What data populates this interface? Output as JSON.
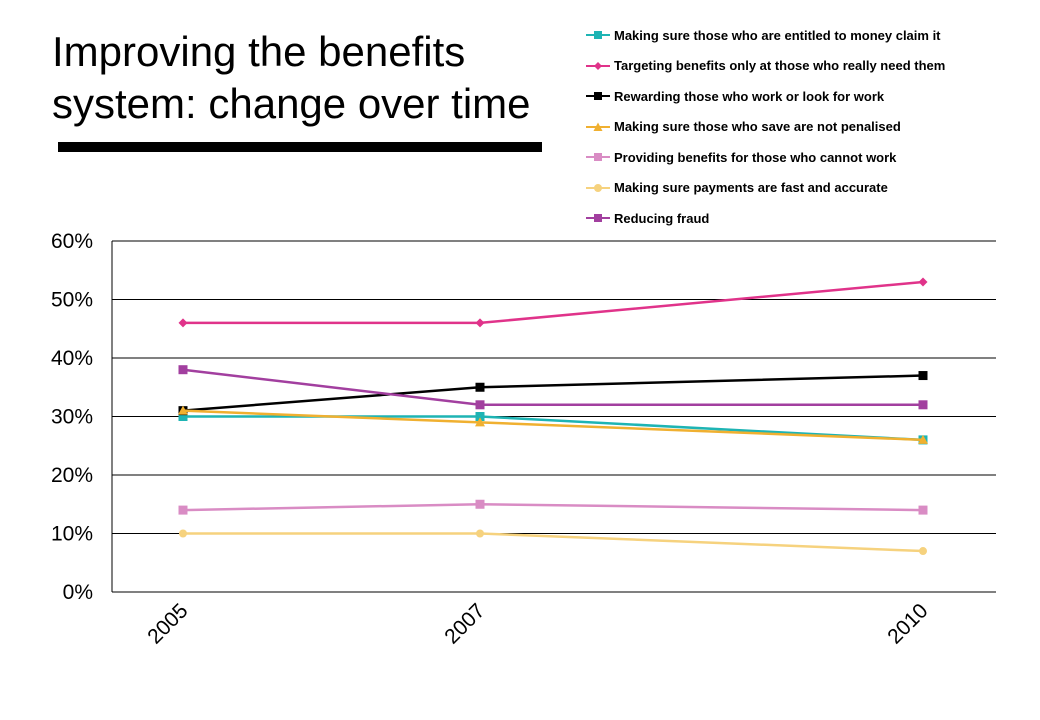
{
  "title_line1": "Improving the benefits",
  "title_line2": "system: change over time",
  "chart_data": {
    "type": "line",
    "title": "Improving the benefits system: change over time",
    "x": [
      "2005",
      "2007",
      "2010"
    ],
    "ylim": [
      0,
      60
    ],
    "yticks": [
      "0%",
      "10%",
      "20%",
      "30%",
      "40%",
      "50%",
      "60%"
    ],
    "grid": true,
    "legend_position": "top-right",
    "series": [
      {
        "name": "Making sure those who are entitled to money claim it",
        "values": [
          30,
          30,
          26
        ],
        "color": "#1eb4b4",
        "marker": "square"
      },
      {
        "name": "Targeting benefits only at those who really need them",
        "values": [
          46,
          46,
          53
        ],
        "color": "#e0338a",
        "marker": "diamond"
      },
      {
        "name": "Rewarding those who work or look for work",
        "values": [
          31,
          35,
          37
        ],
        "color": "#000000",
        "marker": "square"
      },
      {
        "name": "Making sure those who save are not penalised",
        "values": [
          31,
          29,
          26
        ],
        "color": "#f0b030",
        "marker": "triangle"
      },
      {
        "name": "Providing benefits for those who cannot work",
        "values": [
          14,
          15,
          14
        ],
        "color": "#d98cc4",
        "marker": "square"
      },
      {
        "name": "Making sure payments are fast and accurate",
        "values": [
          10,
          10,
          7
        ],
        "color": "#f6d27e",
        "marker": "circle"
      },
      {
        "name": "Reducing fraud",
        "values": [
          38,
          32,
          32
        ],
        "color": "#a23f9f",
        "marker": "square"
      }
    ]
  }
}
